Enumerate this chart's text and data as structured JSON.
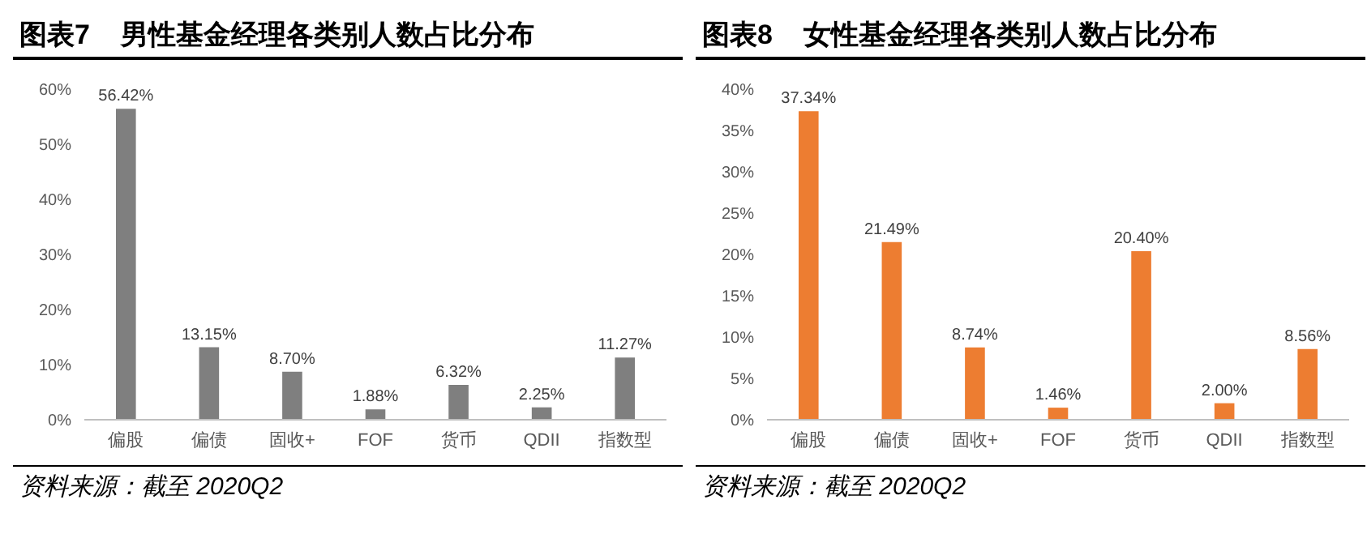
{
  "chart_data": [
    {
      "type": "bar",
      "title": "图表7    男性基金经理各类别人数占比分布",
      "categories": [
        "偏股",
        "偏债",
        "固收+",
        "FOF",
        "货币",
        "QDII",
        "指数型"
      ],
      "values": [
        56.42,
        13.15,
        8.7,
        1.88,
        6.32,
        2.25,
        11.27
      ],
      "value_labels": [
        "56.42%",
        "13.15%",
        "8.70%",
        "1.88%",
        "6.32%",
        "2.25%",
        "11.27%"
      ],
      "color": "#7f7f7f",
      "ylim": [
        0,
        60
      ],
      "yticks": [
        {
          "value": 0,
          "label": "0%"
        },
        {
          "value": 10,
          "label": "10%"
        },
        {
          "value": 20,
          "label": "20%"
        },
        {
          "value": 30,
          "label": "30%"
        },
        {
          "value": 40,
          "label": "40%"
        },
        {
          "value": 50,
          "label": "50%"
        },
        {
          "value": 60,
          "label": "60%"
        }
      ],
      "grid": false,
      "legend": false,
      "annotations": [
        "资料来源：截至 2020Q2"
      ]
    },
    {
      "type": "bar",
      "title": "图表8    女性基金经理各类别人数占比分布",
      "categories": [
        "偏股",
        "偏债",
        "固收+",
        "FOF",
        "货币",
        "QDII",
        "指数型"
      ],
      "values": [
        37.34,
        21.49,
        8.74,
        1.46,
        20.4,
        2.0,
        8.56
      ],
      "value_labels": [
        "37.34%",
        "21.49%",
        "8.74%",
        "1.46%",
        "20.40%",
        "2.00%",
        "8.56%"
      ],
      "color": "#ed7d31",
      "ylim": [
        0,
        40
      ],
      "yticks": [
        {
          "value": 0,
          "label": "0%"
        },
        {
          "value": 5,
          "label": "5%"
        },
        {
          "value": 10,
          "label": "10%"
        },
        {
          "value": 15,
          "label": "15%"
        },
        {
          "value": 20,
          "label": "20%"
        },
        {
          "value": 25,
          "label": "25%"
        },
        {
          "value": 30,
          "label": "30%"
        },
        {
          "value": 35,
          "label": "35%"
        },
        {
          "value": 40,
          "label": "40%"
        }
      ],
      "grid": false,
      "legend": false,
      "annotations": [
        "资料来源：截至 2020Q2"
      ]
    }
  ]
}
